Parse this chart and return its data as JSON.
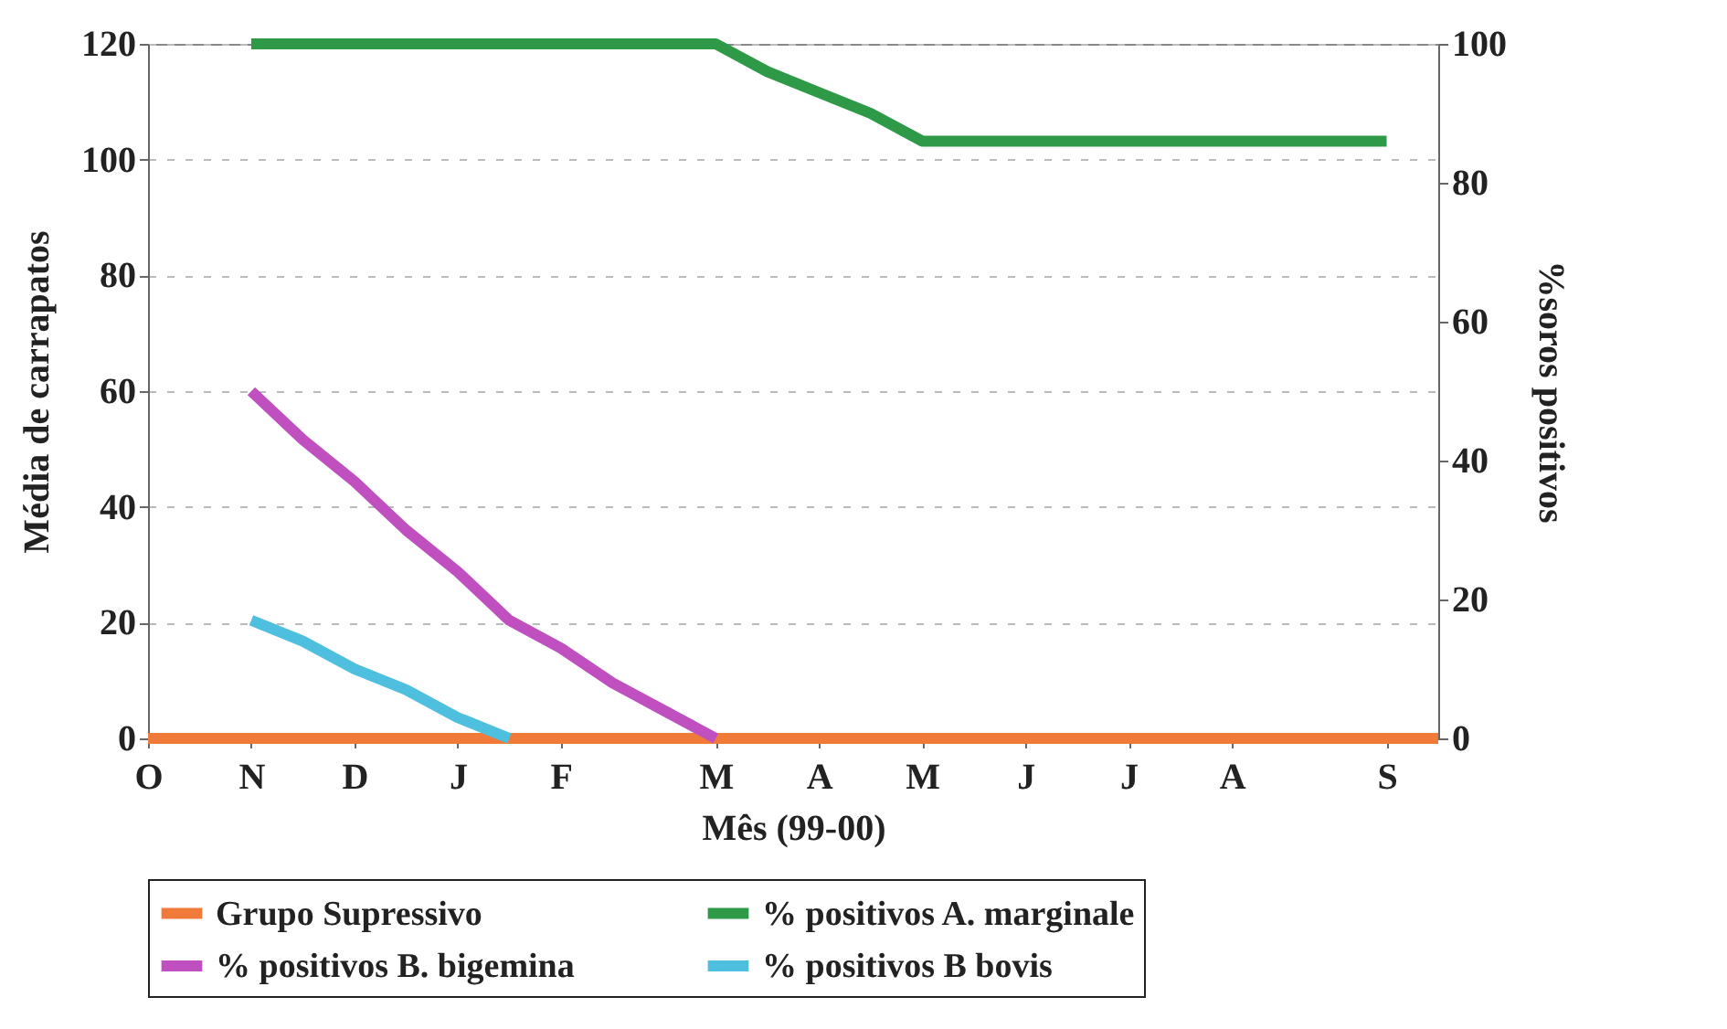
{
  "chart_data": {
    "type": "line",
    "xlabel": "Mês (99-00)",
    "ylabel": "Média de carrapatos",
    "y2label": "%soros positivos",
    "categories": [
      "O",
      null,
      "N",
      null,
      "D",
      null,
      "J",
      null,
      "F",
      null,
      null,
      "M",
      null,
      "A",
      null,
      "M",
      null,
      "J",
      null,
      "J",
      null,
      "A",
      null,
      null,
      "S",
      null
    ],
    "ylim": [
      0,
      120
    ],
    "yticks": [
      0,
      20,
      40,
      60,
      80,
      100,
      120
    ],
    "y2lim": [
      0,
      100
    ],
    "y2ticks": [
      0,
      20,
      40,
      60,
      80,
      100
    ],
    "grid": "y",
    "legend": "bottom",
    "marker": "none",
    "line_style": "solid",
    "series": [
      {
        "name": "Grupo Supressivo",
        "color": "#f07a3a",
        "values": [
          0,
          0,
          0,
          0,
          0,
          0,
          0,
          0,
          0,
          0,
          0,
          0,
          0,
          0,
          0,
          0,
          0,
          0,
          0,
          0,
          0,
          0,
          0,
          0,
          0,
          0
        ]
      },
      {
        "name": "% positivos A. marginale",
        "color": "#2e9a47",
        "axis": "y2",
        "values": [
          null,
          null,
          100,
          100,
          100,
          100,
          100,
          100,
          100,
          100,
          100,
          100,
          96,
          93,
          90,
          86,
          86,
          86,
          86,
          86,
          86,
          86,
          86,
          86,
          86,
          null
        ]
      },
      {
        "name": "% positivos B. bigemina",
        "color": "#c04fc0",
        "axis": "y2",
        "values": [
          null,
          null,
          50,
          43,
          37,
          30,
          24,
          17,
          13,
          8,
          4,
          0,
          null,
          null,
          null,
          null,
          null,
          null,
          null,
          null,
          null,
          null,
          null,
          null,
          null,
          null
        ]
      },
      {
        "name": "% positivos B bovis",
        "color": "#4fbfe0",
        "axis": "y2",
        "values": [
          null,
          null,
          17,
          14,
          10,
          7,
          3,
          0,
          null,
          null,
          null,
          null,
          null,
          null,
          null,
          null,
          null,
          null,
          null,
          null,
          null,
          null,
          null,
          null,
          null,
          null
        ]
      }
    ]
  }
}
